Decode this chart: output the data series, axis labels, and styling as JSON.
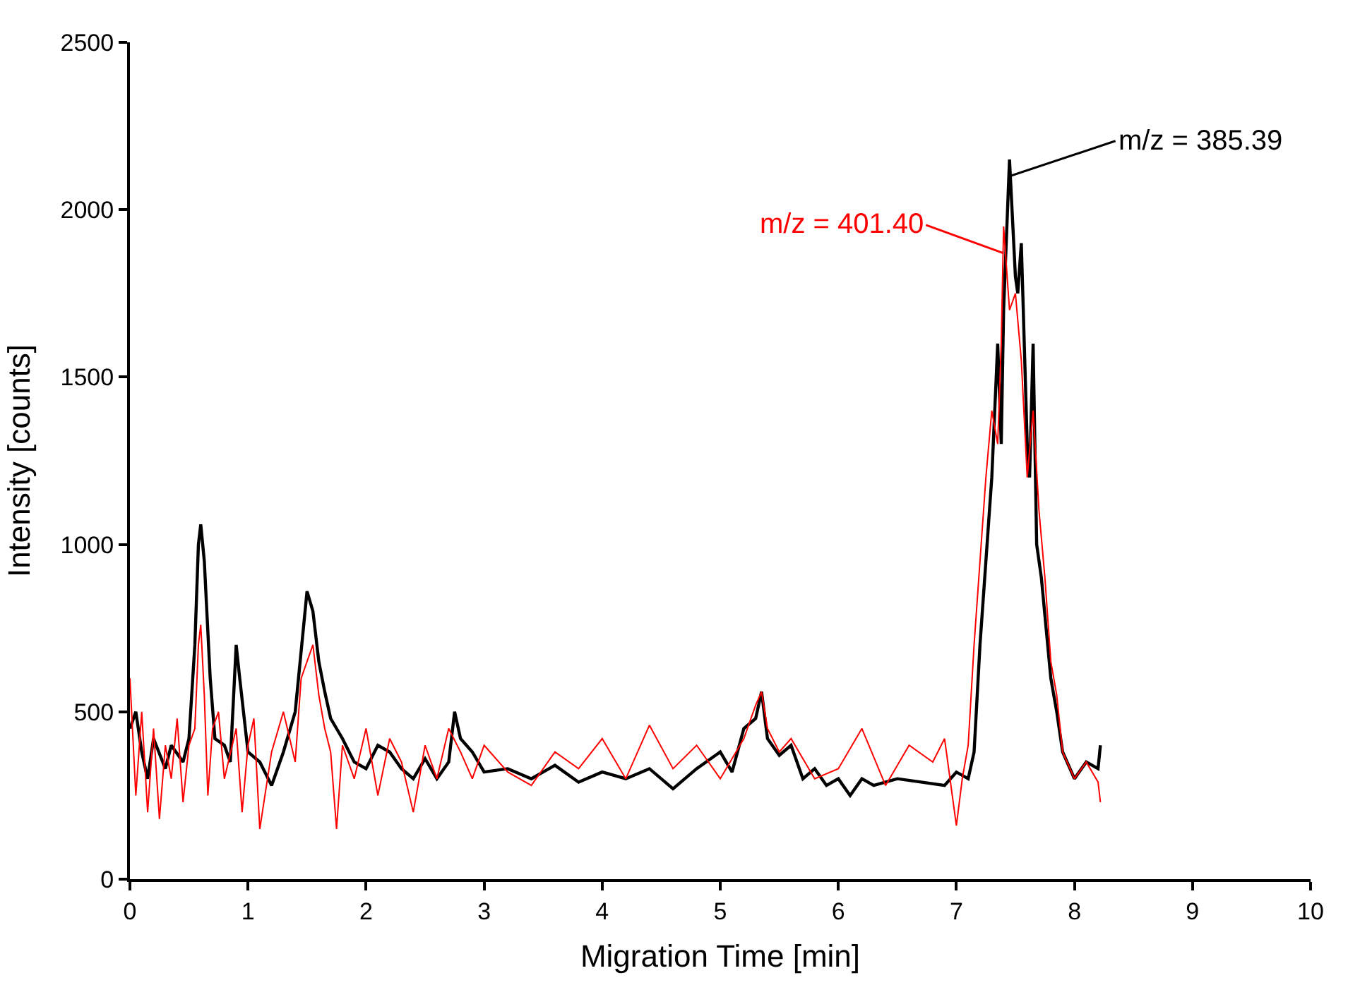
{
  "chart_data": {
    "type": "line",
    "xlabel": "Migration Time [min]",
    "ylabel": "Intensity [counts]",
    "xlim": [
      0,
      10
    ],
    "ylim": [
      0,
      2500
    ],
    "xticks": [
      0,
      1,
      2,
      3,
      4,
      5,
      6,
      7,
      8,
      9,
      10
    ],
    "yticks": [
      0,
      500,
      1000,
      1500,
      2000,
      2500
    ],
    "legend": false,
    "marker": "none",
    "line_style": "solid",
    "series": [
      {
        "color": "#000000",
        "x": [
          0,
          0.05,
          0.1,
          0.15,
          0.2,
          0.3,
          0.35,
          0.45,
          0.5,
          0.55,
          0.58,
          0.6,
          0.63,
          0.68,
          0.72,
          0.8,
          0.85,
          0.9,
          0.93,
          1.0,
          1.1,
          1.2,
          1.3,
          1.4,
          1.5,
          1.55,
          1.6,
          1.65,
          1.7,
          1.8,
          1.9,
          2.0,
          2.1,
          2.2,
          2.3,
          2.4,
          2.5,
          2.6,
          2.7,
          2.75,
          2.8,
          2.9,
          3.0,
          3.2,
          3.4,
          3.6,
          3.8,
          4.0,
          4.2,
          4.4,
          4.6,
          4.8,
          5.0,
          5.1,
          5.2,
          5.3,
          5.35,
          5.4,
          5.5,
          5.6,
          5.7,
          5.8,
          5.9,
          6.0,
          6.1,
          6.2,
          6.3,
          6.5,
          6.7,
          6.9,
          7.0,
          7.1,
          7.15,
          7.2,
          7.25,
          7.3,
          7.35,
          7.38,
          7.4,
          7.45,
          7.5,
          7.52,
          7.55,
          7.6,
          7.62,
          7.65,
          7.68,
          7.72,
          7.8,
          7.85,
          7.9,
          8.0,
          8.1,
          8.2,
          8.22
        ],
        "values": [
          450,
          500,
          380,
          300,
          420,
          330,
          400,
          350,
          420,
          700,
          1000,
          1060,
          950,
          600,
          420,
          400,
          350,
          700,
          600,
          380,
          350,
          280,
          380,
          500,
          860,
          800,
          650,
          560,
          480,
          420,
          350,
          330,
          400,
          380,
          330,
          300,
          360,
          300,
          350,
          500,
          420,
          380,
          320,
          330,
          300,
          340,
          290,
          320,
          300,
          330,
          270,
          330,
          380,
          320,
          450,
          480,
          560,
          420,
          370,
          400,
          300,
          330,
          280,
          300,
          250,
          300,
          280,
          300,
          290,
          280,
          320,
          300,
          380,
          700,
          950,
          1200,
          1600,
          1300,
          1700,
          2150,
          1800,
          1750,
          1900,
          1300,
          1200,
          1600,
          1000,
          900,
          600,
          500,
          380,
          300,
          350,
          330,
          400
        ]
      },
      {
        "color": "#ff0000",
        "x": [
          0,
          0.05,
          0.1,
          0.15,
          0.2,
          0.25,
          0.3,
          0.35,
          0.4,
          0.45,
          0.5,
          0.55,
          0.58,
          0.6,
          0.63,
          0.66,
          0.7,
          0.75,
          0.8,
          0.9,
          0.95,
          1.0,
          1.05,
          1.1,
          1.2,
          1.3,
          1.4,
          1.45,
          1.5,
          1.55,
          1.6,
          1.65,
          1.7,
          1.75,
          1.8,
          1.9,
          2.0,
          2.1,
          2.2,
          2.3,
          2.4,
          2.5,
          2.6,
          2.7,
          2.8,
          2.9,
          3.0,
          3.2,
          3.4,
          3.6,
          3.8,
          4.0,
          4.2,
          4.4,
          4.6,
          4.8,
          5.0,
          5.2,
          5.3,
          5.35,
          5.4,
          5.5,
          5.6,
          5.8,
          6.0,
          6.2,
          6.4,
          6.6,
          6.8,
          6.9,
          7.0,
          7.05,
          7.1,
          7.15,
          7.2,
          7.25,
          7.3,
          7.35,
          7.38,
          7.4,
          7.45,
          7.5,
          7.55,
          7.6,
          7.65,
          7.7,
          7.75,
          7.8,
          7.85,
          7.9,
          8.0,
          8.1,
          8.2,
          8.22
        ],
        "values": [
          600,
          250,
          500,
          200,
          450,
          180,
          400,
          300,
          480,
          230,
          400,
          450,
          700,
          760,
          550,
          250,
          450,
          500,
          300,
          450,
          200,
          400,
          480,
          150,
          380,
          500,
          350,
          600,
          650,
          700,
          550,
          450,
          380,
          150,
          400,
          300,
          450,
          250,
          420,
          350,
          200,
          400,
          300,
          450,
          380,
          300,
          400,
          320,
          280,
          380,
          330,
          420,
          300,
          460,
          330,
          400,
          300,
          420,
          520,
          560,
          450,
          380,
          420,
          300,
          330,
          450,
          280,
          400,
          350,
          420,
          160,
          300,
          400,
          700,
          950,
          1200,
          1400,
          1300,
          1600,
          1950,
          1700,
          1750,
          1550,
          1200,
          1400,
          1100,
          900,
          650,
          550,
          380,
          300,
          350,
          290,
          230
        ]
      }
    ],
    "annotations": [
      {
        "text": "m/z = 385.39",
        "x": 7.45,
        "y": 2100
      },
      {
        "text": "m/z = 401.40",
        "x": 7.4,
        "y": 1870
      }
    ]
  }
}
